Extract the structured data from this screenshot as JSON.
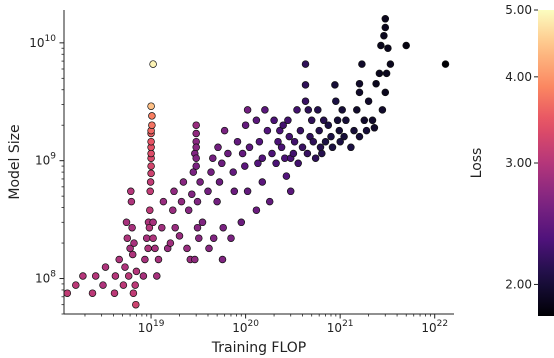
{
  "chart_data": {
    "type": "scatter",
    "title": "",
    "xlabel": "Training FLOP",
    "ylabel": "Model Size",
    "x_scale": "log",
    "y_scale": "log",
    "xlim": [
      1.2e+18,
      1.6e+22
    ],
    "ylim": [
      50000000.0,
      19000000000.0
    ],
    "x_ticks": [
      {
        "value": 1e+19,
        "base": "10",
        "exp": "19"
      },
      {
        "value": 1e+20,
        "base": "10",
        "exp": "20"
      },
      {
        "value": 1e+21,
        "base": "10",
        "exp": "21"
      },
      {
        "value": 1e+22,
        "base": "10",
        "exp": "22"
      }
    ],
    "y_ticks": [
      {
        "value": 100000000.0,
        "base": "10",
        "exp": "8"
      },
      {
        "value": 1000000000.0,
        "base": "10",
        "exp": "9"
      },
      {
        "value": 10000000000.0,
        "base": "10",
        "exp": "10"
      }
    ],
    "colorbar": {
      "label": "Loss",
      "scale": "log",
      "range": [
        1.8,
        5.0
      ],
      "colormap": "magma",
      "ticks": [
        {
          "value": 2.0,
          "label": "2.00"
        },
        {
          "value": 3.0,
          "label": "3.00"
        },
        {
          "value": 4.0,
          "label": "4.00"
        },
        {
          "value": 5.0,
          "label": "5.00"
        }
      ]
    },
    "grid": false,
    "points": [
      [
        1.3e+18,
        75000000.0,
        3.1
      ],
      [
        1.6e+18,
        88000000.0,
        3.05
      ],
      [
        1.9e+18,
        105000000.0,
        3.0
      ],
      [
        2.4e+18,
        75000000.0,
        3.05
      ],
      [
        2.6e+18,
        105000000.0,
        3.0
      ],
      [
        3.1e+18,
        88000000.0,
        2.95
      ],
      [
        3.3e+18,
        125000000.0,
        2.95
      ],
      [
        4.1e+18,
        75000000.0,
        3.05
      ],
      [
        4.2e+18,
        105000000.0,
        3.0
      ],
      [
        4.6e+18,
        145000000.0,
        2.95
      ],
      [
        5.1e+18,
        88000000.0,
        3.05
      ],
      [
        5.3e+18,
        125000000.0,
        2.95
      ],
      [
        5.5e+18,
        300000000.0,
        2.9
      ],
      [
        5.6e+18,
        220000000.0,
        2.95
      ],
      [
        5.8e+18,
        105000000.0,
        3.05
      ],
      [
        6e+18,
        180000000.0,
        2.9
      ],
      [
        6.1e+18,
        550000000.0,
        3.0
      ],
      [
        6.2e+18,
        450000000.0,
        2.95
      ],
      [
        6.3e+18,
        270000000.0,
        2.9
      ],
      [
        6.4e+18,
        160000000.0,
        2.95
      ],
      [
        6.5e+18,
        75000000.0,
        3.1
      ],
      [
        6.6e+18,
        200000000.0,
        2.9
      ],
      [
        6.8e+18,
        88000000.0,
        3.05
      ],
      [
        6.9e+18,
        60000000.0,
        3.2
      ],
      [
        7e+18,
        115000000.0,
        3.0
      ],
      [
        8.3e+18,
        105000000.0,
        2.9
      ],
      [
        8.6e+18,
        145000000.0,
        2.9
      ],
      [
        9e+18,
        220000000.0,
        2.9
      ],
      [
        9.3e+18,
        180000000.0,
        2.95
      ],
      [
        9.4e+18,
        300000000.0,
        2.95
      ],
      [
        9.6e+18,
        270000000.0,
        3.0
      ],
      [
        9.7e+18,
        380000000.0,
        3.05
      ],
      [
        9.8e+18,
        550000000.0,
        3.1
      ],
      [
        9.9e+18,
        660000000.0,
        3.1
      ],
      [
        1e+19,
        780000000.0,
        3.2
      ],
      [
        1e+19,
        900000000.0,
        3.25
      ],
      [
        1e+19,
        1050000000.0,
        3.3
      ],
      [
        1e+19,
        1150000000.0,
        3.35
      ],
      [
        1e+19,
        1300000000.0,
        3.4
      ],
      [
        1e+19,
        1450000000.0,
        3.45
      ],
      [
        1e+19,
        1700000000.0,
        3.55
      ],
      [
        1e+19,
        1800000000.0,
        3.6
      ],
      [
        1.02e+19,
        2000000000.0,
        3.7
      ],
      [
        1.02e+19,
        2400000000.0,
        3.8
      ],
      [
        1e+19,
        2900000000.0,
        4.4
      ],
      [
        1.05e+19,
        6600000000.0,
        4.9
      ],
      [
        1.05e+19,
        300000000.0,
        2.9
      ],
      [
        1.05e+19,
        220000000.0,
        2.95
      ],
      [
        1.1e+19,
        180000000.0,
        2.9
      ],
      [
        1.15e+19,
        105000000.0,
        2.9
      ],
      [
        1.2e+19,
        145000000.0,
        2.9
      ],
      [
        1.3e+19,
        270000000.0,
        2.85
      ],
      [
        1.35e+19,
        450000000.0,
        2.8
      ],
      [
        1.5e+19,
        180000000.0,
        2.8
      ],
      [
        1.6e+19,
        200000000.0,
        2.85
      ],
      [
        1.7e+19,
        380000000.0,
        2.8
      ],
      [
        1.75e+19,
        550000000.0,
        2.75
      ],
      [
        1.8e+19,
        270000000.0,
        2.8
      ],
      [
        2e+19,
        230000000.0,
        2.8
      ],
      [
        2.1e+19,
        450000000.0,
        2.75
      ],
      [
        2.2e+19,
        660000000.0,
        2.7
      ],
      [
        2.4e+19,
        180000000.0,
        2.8
      ],
      [
        2.5e+19,
        380000000.0,
        2.7
      ],
      [
        2.6e+19,
        145000000.0,
        2.8
      ],
      [
        2.7e+19,
        520000000.0,
        2.65
      ],
      [
        2.8e+19,
        800000000.0,
        2.6
      ],
      [
        2.9e+19,
        1150000000.0,
        2.65
      ],
      [
        2.9e+19,
        145000000.0,
        2.75
      ],
      [
        3e+19,
        1450000000.0,
        2.7
      ],
      [
        3e+19,
        1700000000.0,
        2.75
      ],
      [
        3e+19,
        2000000000.0,
        2.8
      ],
      [
        3e+19,
        1300000000.0,
        2.7
      ],
      [
        3e+19,
        1050000000.0,
        2.65
      ],
      [
        3e+19,
        900000000.0,
        2.6
      ],
      [
        3.1e+19,
        450000000.0,
        2.65
      ],
      [
        3.1e+19,
        270000000.0,
        2.7
      ],
      [
        3.2e+19,
        220000000.0,
        2.7
      ],
      [
        3.3e+19,
        660000000.0,
        2.6
      ],
      [
        3.5e+19,
        300000000.0,
        2.65
      ],
      [
        4e+19,
        550000000.0,
        2.55
      ],
      [
        4.1e+19,
        180000000.0,
        2.7
      ],
      [
        4.3e+19,
        800000000.0,
        2.55
      ],
      [
        4.5e+19,
        1050000000.0,
        2.55
      ],
      [
        4.6e+19,
        220000000.0,
        2.65
      ],
      [
        5e+19,
        450000000.0,
        2.55
      ],
      [
        5.1e+19,
        1300000000.0,
        2.55
      ],
      [
        5.3e+19,
        660000000.0,
        2.5
      ],
      [
        5.6e+19,
        950000000.0,
        2.5
      ],
      [
        5.7e+19,
        145000000.0,
        2.65
      ],
      [
        5.8e+19,
        270000000.0,
        2.6
      ],
      [
        6e+19,
        1800000000.0,
        2.6
      ],
      [
        6.5e+19,
        1150000000.0,
        2.5
      ],
      [
        7e+19,
        220000000.0,
        2.6
      ],
      [
        7.4e+19,
        800000000.0,
        2.45
      ],
      [
        7.6e+19,
        550000000.0,
        2.5
      ],
      [
        8.2e+19,
        1450000000.0,
        2.45
      ],
      [
        9e+19,
        300000000.0,
        2.5
      ],
      [
        9.3e+19,
        1150000000.0,
        2.45
      ],
      [
        9.8e+19,
        900000000.0,
        2.4
      ],
      [
        1e+20,
        2000000000.0,
        2.45
      ],
      [
        1.05e+20,
        2700000000.0,
        2.55
      ],
      [
        1.05e+20,
        550000000.0,
        2.45
      ],
      [
        1.1e+20,
        1300000000.0,
        2.4
      ],
      [
        1.3e+20,
        2200000000.0,
        2.4
      ],
      [
        1.3e+20,
        380000000.0,
        2.5
      ],
      [
        1.35e+20,
        950000000.0,
        2.35
      ],
      [
        1.4e+20,
        1450000000.0,
        2.35
      ],
      [
        1.5e+20,
        660000000.0,
        2.4
      ],
      [
        1.5e+20,
        1050000000.0,
        2.35
      ],
      [
        1.6e+20,
        2700000000.0,
        2.4
      ],
      [
        1.7e+20,
        1800000000.0,
        2.35
      ],
      [
        1.8e+20,
        450000000.0,
        2.45
      ],
      [
        1.9e+20,
        1150000000.0,
        2.3
      ],
      [
        2e+20,
        2200000000.0,
        2.3
      ],
      [
        2.1e+20,
        950000000.0,
        2.3
      ],
      [
        2.2e+20,
        1450000000.0,
        2.3
      ],
      [
        2.3e+20,
        1800000000.0,
        2.3
      ],
      [
        2.4e+20,
        1300000000.0,
        2.3
      ],
      [
        2.5e+20,
        2000000000.0,
        2.25
      ],
      [
        2.6e+20,
        1050000000.0,
        2.3
      ],
      [
        2.7e+20,
        740000000.0,
        2.35
      ],
      [
        2.8e+20,
        2200000000.0,
        2.25
      ],
      [
        2.9e+20,
        1600000000.0,
        2.25
      ],
      [
        3e+20,
        550000000.0,
        2.4
      ],
      [
        3e+20,
        1050000000.0,
        2.3
      ],
      [
        3.2e+20,
        1150000000.0,
        2.25
      ],
      [
        3.3e+20,
        1450000000.0,
        2.25
      ],
      [
        3.5e+20,
        2700000000.0,
        2.25
      ],
      [
        3.6e+20,
        950000000.0,
        2.25
      ],
      [
        3.8e+20,
        1800000000.0,
        2.2
      ],
      [
        4e+20,
        1300000000.0,
        2.2
      ],
      [
        4.3e+20,
        6600000000.0,
        2.15
      ],
      [
        4.3e+20,
        4400000000.0,
        2.15
      ],
      [
        4.3e+20,
        3200000000.0,
        2.2
      ],
      [
        4.5e+20,
        1150000000.0,
        2.2
      ],
      [
        4.6e+20,
        2700000000.0,
        2.15
      ],
      [
        4.8e+20,
        1600000000.0,
        2.15
      ],
      [
        5e+20,
        2200000000.0,
        2.15
      ],
      [
        5.2e+20,
        1450000000.0,
        2.15
      ],
      [
        5.5e+20,
        1050000000.0,
        2.15
      ],
      [
        5.8e+20,
        2700000000.0,
        2.1
      ],
      [
        6e+20,
        1800000000.0,
        2.1
      ],
      [
        6.2e+20,
        1300000000.0,
        2.1
      ],
      [
        6.4e+20,
        1150000000.0,
        2.1
      ],
      [
        6.7e+20,
        2200000000.0,
        2.1
      ],
      [
        7e+20,
        1450000000.0,
        2.05
      ],
      [
        7.5e+20,
        2000000000.0,
        2.05
      ],
      [
        8e+20,
        1600000000.0,
        2.05
      ],
      [
        8.3e+20,
        1300000000.0,
        2.05
      ],
      [
        8.8e+20,
        4400000000.0,
        2.0
      ],
      [
        9e+20,
        3200000000.0,
        2.05
      ],
      [
        9.4e+20,
        2200000000.0,
        2.0
      ],
      [
        9.8e+20,
        1800000000.0,
        2.0
      ],
      [
        1e+21,
        1450000000.0,
        2.05
      ],
      [
        1.05e+21,
        2700000000.0,
        2.0
      ],
      [
        1.1e+21,
        1600000000.0,
        2.0
      ],
      [
        1.15e+21,
        2200000000.0,
        2.0
      ],
      [
        1.3e+21,
        1300000000.0,
        2.05
      ],
      [
        1.4e+21,
        1800000000.0,
        2.0
      ],
      [
        1.5e+21,
        2700000000.0,
        1.95
      ],
      [
        1.6e+21,
        3800000000.0,
        1.95
      ],
      [
        1.6e+21,
        4500000000.0,
        1.95
      ],
      [
        1.6e+21,
        1600000000.0,
        2.0
      ],
      [
        1.7e+21,
        6600000000.0,
        1.95
      ],
      [
        1.8e+21,
        2200000000.0,
        1.95
      ],
      [
        1.9e+21,
        1800000000.0,
        2.0
      ],
      [
        2e+21,
        3200000000.0,
        1.95
      ],
      [
        2.2e+21,
        2200000000.0,
        1.95
      ],
      [
        2.3e+21,
        1900000000.0,
        1.95
      ],
      [
        2.4e+21,
        4500000000.0,
        1.9
      ],
      [
        2.6e+21,
        5500000000.0,
        1.9
      ],
      [
        2.7e+21,
        9500000000.0,
        1.9
      ],
      [
        2.8e+21,
        2700000000.0,
        1.95
      ],
      [
        2.9e+21,
        11500000000.0,
        1.9
      ],
      [
        3e+21,
        16000000000.0,
        1.9
      ],
      [
        3e+21,
        13500000000.0,
        1.9
      ],
      [
        3e+21,
        3800000000.0,
        1.9
      ],
      [
        3.1e+21,
        5500000000.0,
        1.9
      ],
      [
        3.2e+21,
        9000000000.0,
        1.9
      ],
      [
        3.4e+21,
        6600000000.0,
        1.9
      ],
      [
        5e+21,
        9500000000.0,
        1.85
      ],
      [
        1.3e+22,
        6600000000.0,
        1.8
      ]
    ]
  }
}
